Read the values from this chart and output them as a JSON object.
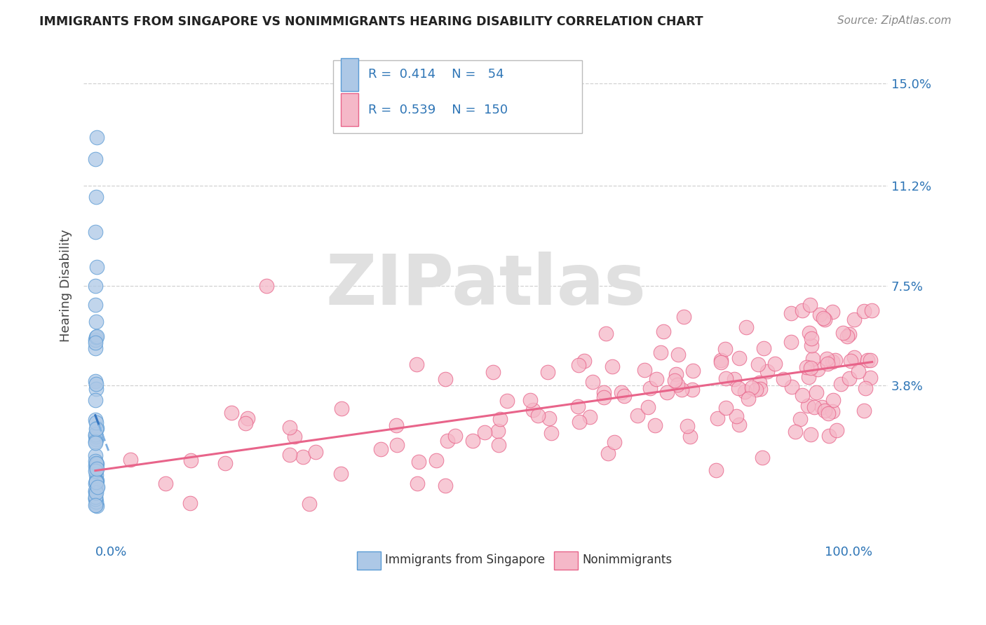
{
  "title": "IMMIGRANTS FROM SINGAPORE VS NONIMMIGRANTS HEARING DISABILITY CORRELATION CHART",
  "source": "Source: ZipAtlas.com",
  "ylabel": "Hearing Disability",
  "xlim": [
    -0.015,
    1.02
  ],
  "ylim": [
    -0.012,
    0.162
  ],
  "yticks": [
    0.038,
    0.075,
    0.112,
    0.15
  ],
  "ytick_labels": [
    "3.8%",
    "7.5%",
    "11.2%",
    "15.0%"
  ],
  "blue_R": 0.414,
  "blue_N": 54,
  "pink_R": 0.539,
  "pink_N": 150,
  "blue_scatter_color": "#adc8e6",
  "blue_edge_color": "#5b9bd5",
  "pink_scatter_color": "#f5b8c8",
  "pink_edge_color": "#e8648a",
  "pink_line_color": "#e8648a",
  "blue_line_color": "#3575c0",
  "blue_dashed_color": "#7fb0e0",
  "legend_color": "#2e75b6",
  "grid_color": "#cccccc",
  "title_color": "#222222",
  "source_color": "#888888",
  "ylabel_color": "#444444",
  "tick_label_color": "#2e75b6",
  "watermark_color": "#e0e0e0",
  "bg_color": "#ffffff"
}
